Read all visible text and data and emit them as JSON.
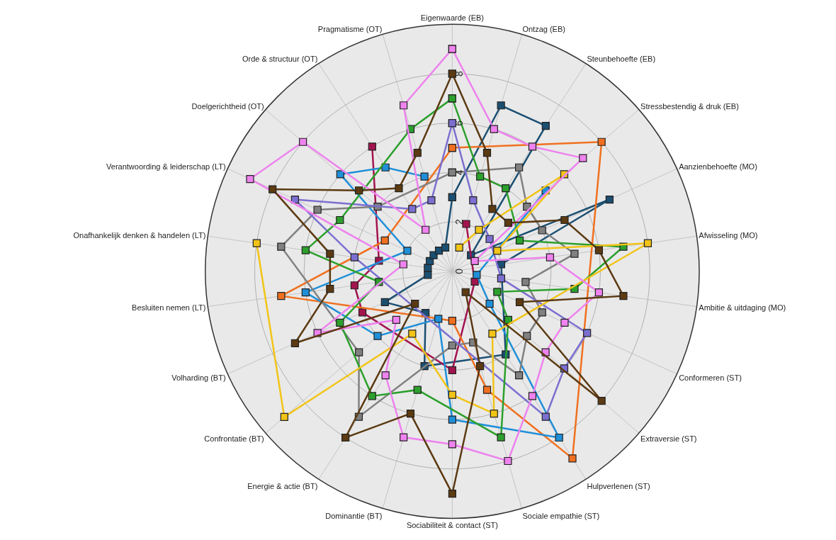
{
  "chart_data": {
    "type": "radar",
    "categories": [
      "Eigenwaarde (EB)",
      "Ontzag (EB)",
      "Steunbehoefte (EB)",
      "Stressbestendig & druk (EB)",
      "Aanzienbehoefte (MO)",
      "Afwisseling (MO)",
      "Ambitie & uitdaging (MO)",
      "Conformeren (ST)",
      "Extraversie (ST)",
      "Hulpverlenen (ST)",
      "Sociale empathie (ST)",
      "Sociabiliteit & contact (ST)",
      "Dominantie (BT)",
      "Energie & actie (BT)",
      "Confrontatie (BT)",
      "Volharding (BT)",
      "Besluiten nemen (LT)",
      "Onafhankelijk denken & handelen (LT)",
      "Verantwoording & leiderschap (LT)",
      "Doelgerichtheid (OT)",
      "Orde & structuur (OT)",
      "Pragmatisme (OT)"
    ],
    "series": [
      {
        "color": "#1b4f72",
        "values": [
          3,
          7,
          7,
          1,
          7,
          2,
          null,
          null,
          null,
          4,
          null,
          null,
          4,
          2,
          null,
          3,
          1,
          1,
          1,
          1,
          1,
          1
        ]
      },
      {
        "color": "#a3144f",
        "values": [
          null,
          2,
          null,
          null,
          null,
          null,
          null,
          1,
          null,
          null,
          null,
          4,
          null,
          null,
          null,
          4,
          4,
          3,
          null,
          null,
          6,
          null
        ]
      },
      {
        "color": "#f07020",
        "values": [
          5,
          null,
          null,
          8,
          null,
          null,
          null,
          null,
          null,
          9,
          5,
          2,
          null,
          null,
          null,
          null,
          7,
          null,
          3,
          null,
          null,
          null
        ]
      },
      {
        "color": "#1f8fd8",
        "values": [
          null,
          null,
          null,
          5,
          null,
          null,
          1,
          null,
          2,
          8,
          null,
          6,
          2,
          null,
          4,
          null,
          6,
          null,
          2,
          6,
          5,
          4
        ]
      },
      {
        "color": "#808080",
        "values": [
          4,
          null,
          5,
          4,
          4,
          5,
          3,
          4,
          4,
          5,
          3,
          3,
          null,
          7,
          5,
          null,
          null,
          7,
          6,
          4,
          null,
          null
        ]
      },
      {
        "color": "#7b6fd0",
        "values": [
          6,
          3,
          null,
          2,
          null,
          null,
          2,
          6,
          6,
          7,
          null,
          null,
          null,
          null,
          null,
          null,
          null,
          4,
          7,
          null,
          3,
          3
        ]
      },
      {
        "color": "#2ca02c",
        "values": [
          7,
          4,
          4,
          null,
          3,
          7,
          5,
          2,
          3,
          null,
          7,
          null,
          5,
          6,
          null,
          5,
          3,
          6,
          5,
          null,
          null,
          6
        ]
      },
      {
        "color": "#f2c418",
        "values": [
          null,
          1,
          2,
          6,
          2,
          8,
          null,
          null,
          null,
          3,
          6,
          5,
          null,
          3,
          9,
          null,
          null,
          8,
          null,
          null,
          null,
          null
        ]
      },
      {
        "color": "#ee82ee",
        "values": [
          9,
          6,
          6,
          7,
          1,
          4,
          6,
          5,
          5,
          6,
          8,
          7,
          7,
          5,
          3,
          6,
          null,
          2,
          9,
          8,
          2,
          7
        ]
      },
      {
        "color": "#5c3a12",
        "values": [
          8,
          5,
          3,
          3,
          5,
          6,
          7,
          3,
          8,
          1,
          4,
          9,
          6,
          8,
          2,
          7,
          5,
          5,
          8,
          5,
          4,
          5
        ]
      }
    ],
    "ylim": [
      0,
      10
    ],
    "yticks": [
      0,
      2,
      4,
      6,
      8
    ],
    "grid": true,
    "marker": "square"
  }
}
